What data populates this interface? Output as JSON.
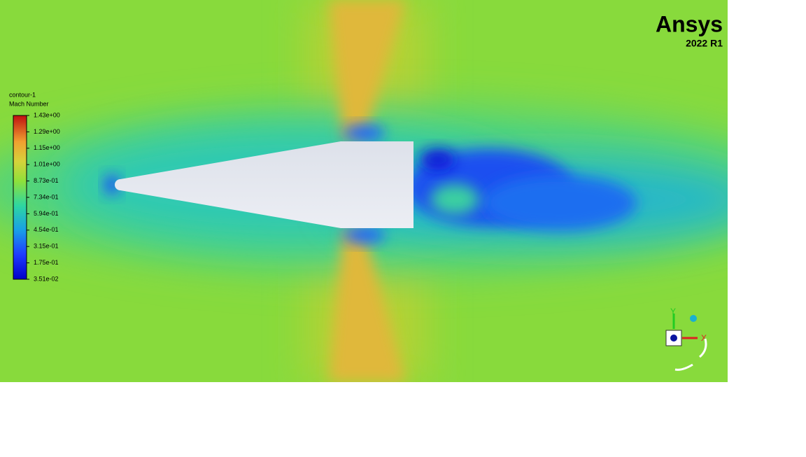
{
  "logo": {
    "brand": "Ansys",
    "version": "2022 R1"
  },
  "legend": {
    "title": "contour-1",
    "variable": "Mach Number",
    "labels": [
      "1.43e+00",
      "1.29e+00",
      "1.15e+00",
      "1.01e+00",
      "8.73e-01",
      "7.34e-01",
      "5.94e-01",
      "4.54e-01",
      "3.15e-01",
      "1.75e-01",
      "3.51e-02"
    ]
  },
  "triad": {
    "x": "X",
    "y": "Y"
  }
}
